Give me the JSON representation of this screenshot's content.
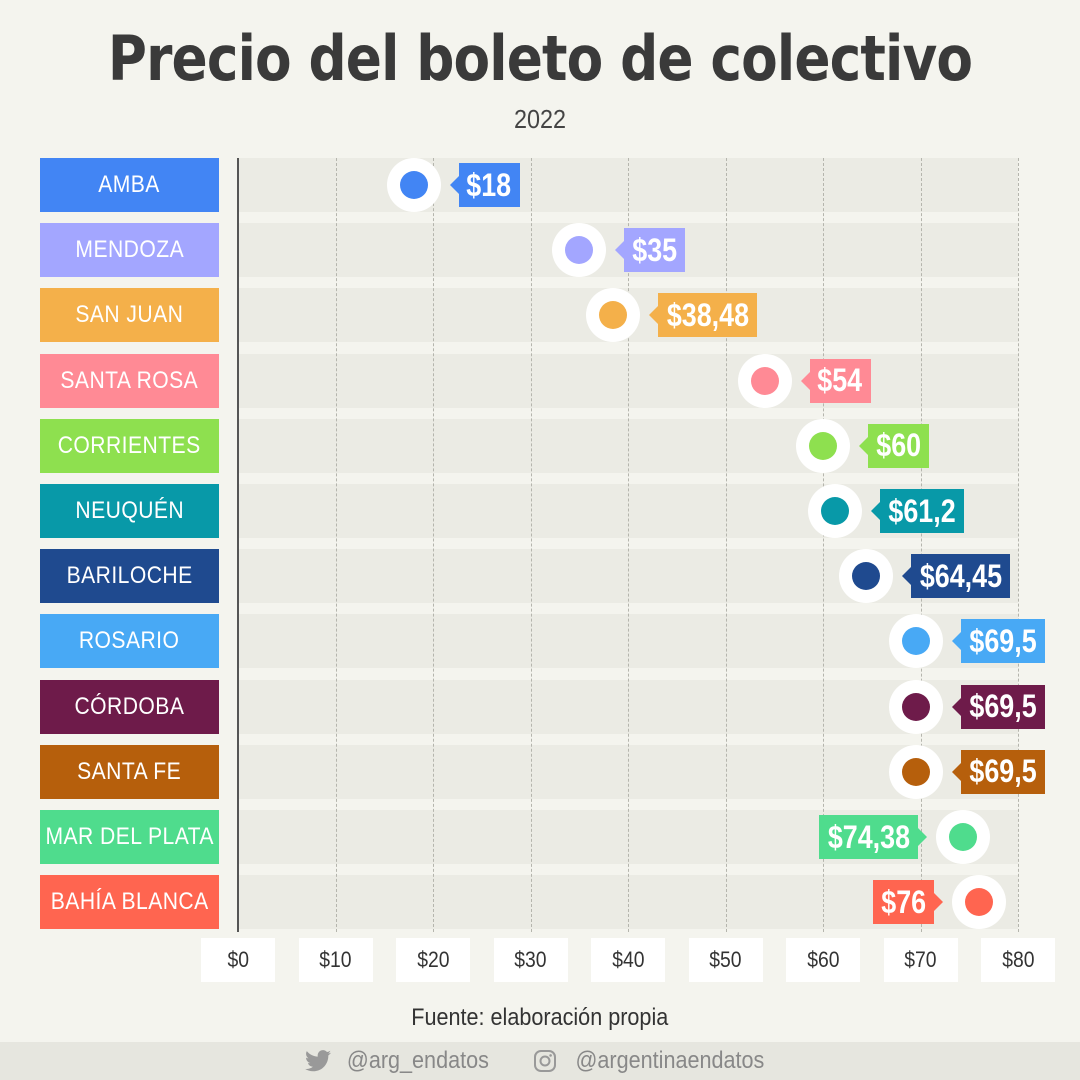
{
  "title": "Precio del boleto de colectivo",
  "subtitle": "2022",
  "source": "Fuente: elaboración propia",
  "footer": {
    "twitter": "@arg_endatos",
    "instagram": "@argentinaendatos"
  },
  "chart_data": {
    "type": "scatter",
    "title": "Precio del boleto de colectivo",
    "subtitle": "2022",
    "xlim": [
      0,
      80
    ],
    "x_ticks": [
      "$0",
      "$10",
      "$20",
      "$30",
      "$40",
      "$50",
      "$60",
      "$70",
      "$80"
    ],
    "grid": true,
    "categories": [
      "AMBA",
      "MENDOZA",
      "SAN JUAN",
      "SANTA ROSA",
      "CORRIENTES",
      "NEUQUÉN",
      "BARILOCHE",
      "ROSARIO",
      "CÓRDOBA",
      "SANTA FE",
      "MAR DEL PLATA",
      "BAHÍA BLANCA"
    ],
    "values": [
      18,
      35,
      38.48,
      54,
      60,
      61.2,
      64.45,
      69.5,
      69.5,
      69.5,
      74.38,
      76
    ],
    "value_labels": [
      "$18",
      "$35",
      "$38,48",
      "$54",
      "$60",
      "$61,2",
      "$64,45",
      "$69,5",
      "$69,5",
      "$69,5",
      "$74,38",
      "$76"
    ],
    "colors": [
      "#4285f4",
      "#a3a6ff",
      "#f4b04a",
      "#ff8a95",
      "#8ee04f",
      "#0899a8",
      "#1f4a8f",
      "#48a9f5",
      "#6e1b4a",
      "#b65f0c",
      "#4fdc8d",
      "#ff6550"
    ],
    "label_side": [
      "right",
      "right",
      "right",
      "right",
      "right",
      "right",
      "right",
      "right",
      "right",
      "right",
      "left",
      "left"
    ]
  }
}
